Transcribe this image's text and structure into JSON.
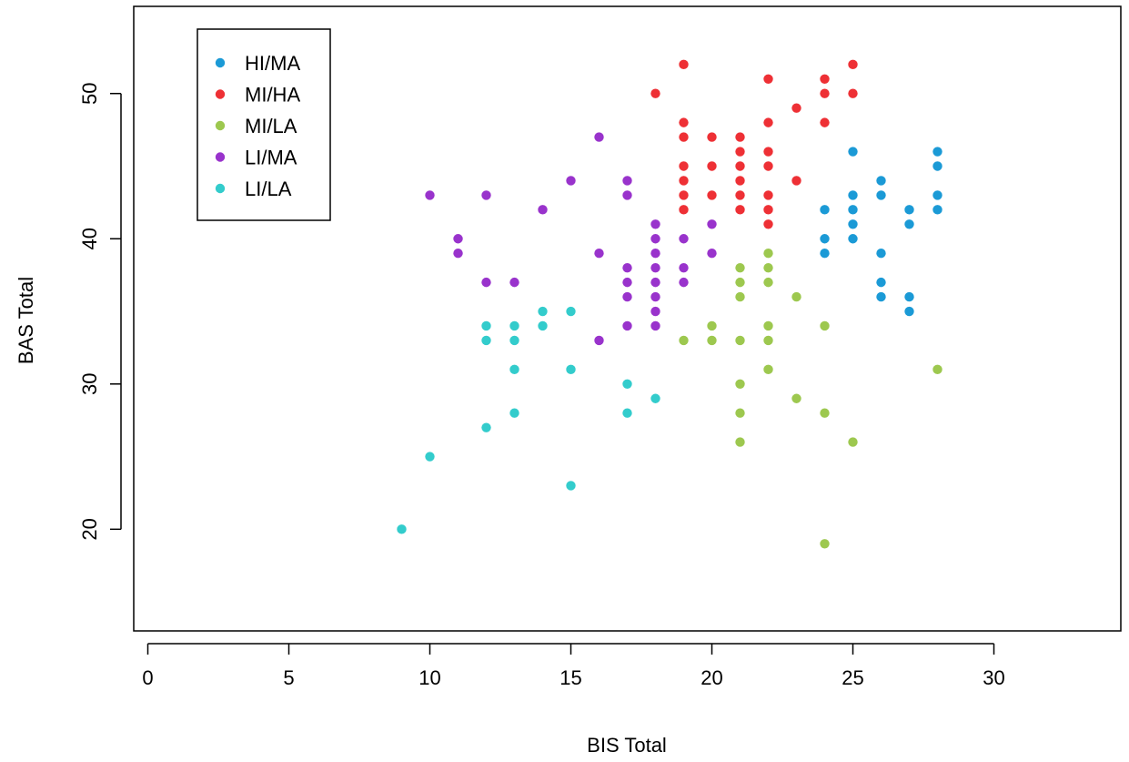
{
  "chart_data": {
    "type": "scatter",
    "title": "",
    "xlabel": "BIS Total",
    "ylabel": "BAS Total",
    "xlim": [
      -0.5,
      34.5
    ],
    "ylim": [
      13,
      56
    ],
    "xticks": [
      0,
      5,
      10,
      15,
      20,
      25,
      30
    ],
    "yticks": [
      20,
      30,
      40,
      50
    ],
    "grid": false,
    "legend_position": "top-left",
    "series": [
      {
        "name": "HI/MA",
        "color": "#1b9ad6",
        "points": [
          [
            24,
            42
          ],
          [
            24,
            40
          ],
          [
            24,
            39
          ],
          [
            25,
            46
          ],
          [
            25,
            43
          ],
          [
            25,
            42
          ],
          [
            25,
            41
          ],
          [
            25,
            40
          ],
          [
            26,
            44
          ],
          [
            26,
            43
          ],
          [
            26,
            39
          ],
          [
            26,
            37
          ],
          [
            26,
            36
          ],
          [
            27,
            42
          ],
          [
            27,
            41
          ],
          [
            27,
            36
          ],
          [
            27,
            35
          ],
          [
            28,
            46
          ],
          [
            28,
            45
          ],
          [
            28,
            43
          ],
          [
            28,
            42
          ]
        ]
      },
      {
        "name": "MI/HA",
        "color": "#ee3035",
        "points": [
          [
            18,
            50
          ],
          [
            19,
            52
          ],
          [
            19,
            48
          ],
          [
            19,
            47
          ],
          [
            19,
            45
          ],
          [
            19,
            44
          ],
          [
            19,
            43
          ],
          [
            19,
            42
          ],
          [
            20,
            47
          ],
          [
            20,
            45
          ],
          [
            20,
            43
          ],
          [
            21,
            47
          ],
          [
            21,
            46
          ],
          [
            21,
            45
          ],
          [
            21,
            44
          ],
          [
            21,
            43
          ],
          [
            21,
            42
          ],
          [
            22,
            51
          ],
          [
            22,
            48
          ],
          [
            22,
            46
          ],
          [
            22,
            45
          ],
          [
            22,
            43
          ],
          [
            22,
            42
          ],
          [
            22,
            41
          ],
          [
            23,
            49
          ],
          [
            23,
            44
          ],
          [
            24,
            51
          ],
          [
            24,
            50
          ],
          [
            24,
            48
          ],
          [
            25,
            52
          ],
          [
            25,
            50
          ]
        ]
      },
      {
        "name": "MI/LA",
        "color": "#9dc84f",
        "points": [
          [
            19,
            33
          ],
          [
            20,
            34
          ],
          [
            20,
            33
          ],
          [
            21,
            38
          ],
          [
            21,
            37
          ],
          [
            21,
            36
          ],
          [
            21,
            33
          ],
          [
            21,
            30
          ],
          [
            21,
            28
          ],
          [
            21,
            26
          ],
          [
            22,
            39
          ],
          [
            22,
            38
          ],
          [
            22,
            37
          ],
          [
            22,
            34
          ],
          [
            22,
            33
          ],
          [
            22,
            31
          ],
          [
            23,
            36
          ],
          [
            23,
            29
          ],
          [
            24,
            34
          ],
          [
            24,
            28
          ],
          [
            24,
            19
          ],
          [
            25,
            26
          ],
          [
            28,
            31
          ]
        ]
      },
      {
        "name": "LI/MA",
        "color": "#9933cc",
        "points": [
          [
            10,
            43
          ],
          [
            11,
            40
          ],
          [
            11,
            39
          ],
          [
            12,
            43
          ],
          [
            12,
            37
          ],
          [
            13,
            37
          ],
          [
            14,
            42
          ],
          [
            15,
            44
          ],
          [
            16,
            47
          ],
          [
            16,
            39
          ],
          [
            16,
            33
          ],
          [
            17,
            44
          ],
          [
            17,
            43
          ],
          [
            17,
            38
          ],
          [
            17,
            37
          ],
          [
            17,
            36
          ],
          [
            17,
            34
          ],
          [
            18,
            41
          ],
          [
            18,
            40
          ],
          [
            18,
            39
          ],
          [
            18,
            38
          ],
          [
            18,
            37
          ],
          [
            18,
            36
          ],
          [
            18,
            35
          ],
          [
            18,
            34
          ],
          [
            19,
            40
          ],
          [
            19,
            38
          ],
          [
            19,
            37
          ],
          [
            20,
            41
          ],
          [
            20,
            39
          ]
        ]
      },
      {
        "name": "LI/LA",
        "color": "#33cccc",
        "points": [
          [
            9,
            20
          ],
          [
            10,
            25
          ],
          [
            12,
            34
          ],
          [
            12,
            33
          ],
          [
            12,
            27
          ],
          [
            13,
            34
          ],
          [
            13,
            33
          ],
          [
            13,
            31
          ],
          [
            13,
            28
          ],
          [
            14,
            35
          ],
          [
            14,
            34
          ],
          [
            15,
            35
          ],
          [
            15,
            31
          ],
          [
            15,
            23
          ],
          [
            17,
            30
          ],
          [
            17,
            28
          ],
          [
            18,
            29
          ]
        ]
      }
    ]
  }
}
